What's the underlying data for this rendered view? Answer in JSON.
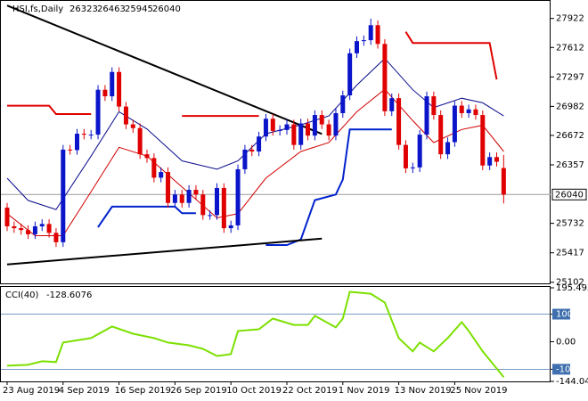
{
  "chart_data": [
    {
      "type": "candlestick",
      "title": "HSI,fs,Daily",
      "categories": [
        "23 Aug 2019",
        null,
        null,
        null,
        null,
        null,
        null,
        null,
        "4 Sep 2019",
        null,
        null,
        null,
        null,
        null,
        null,
        null,
        "16 Sep 2019",
        null,
        null,
        null,
        null,
        null,
        null,
        null,
        "26 Sep 2019",
        null,
        null,
        null,
        null,
        null,
        null,
        null,
        "10 Oct 2019",
        null,
        null,
        null,
        null,
        null,
        null,
        null,
        "22 Oct 2019",
        null,
        null,
        null,
        null,
        null,
        null,
        null,
        "1 Nov 2019",
        null,
        null,
        null,
        null,
        null,
        null,
        null,
        "13 Nov 2019",
        null,
        null,
        null,
        null,
        null,
        null,
        null,
        "25 Nov 2019",
        null,
        null,
        null,
        null,
        null,
        null,
        null
      ],
      "open": [
        25900,
        25700,
        25680,
        25660,
        25615,
        25700,
        25725,
        25630,
        25530,
        26520,
        26515,
        26690,
        26680,
        26680,
        27160,
        27090,
        27350,
        26980,
        26790,
        26750,
        26470,
        26430,
        26220,
        26280,
        25950,
        26040,
        25950,
        26090,
        26040,
        25820,
        25820,
        26110,
        25680,
        25710,
        26310,
        26520,
        26500,
        26660,
        26850,
        26720,
        26730,
        26790,
        26570,
        26800,
        26670,
        26890,
        26790,
        26670,
        26910,
        27100,
        27550,
        27680,
        27690,
        27850,
        27650,
        26930,
        27070,
        26570,
        26320,
        26330,
        26680,
        27090,
        26890,
        26470,
        26600,
        26990,
        26910,
        26950,
        26890,
        26350,
        26440,
        26323
      ],
      "high": [
        25950,
        25750,
        25730,
        25710,
        25750,
        25775,
        25775,
        25680,
        26570,
        26570,
        26740,
        26740,
        26730,
        27210,
        27210,
        27400,
        27400,
        27030,
        26840,
        26800,
        26520,
        26480,
        26330,
        26330,
        26090,
        26090,
        26140,
        26140,
        26090,
        25870,
        26160,
        26160,
        25760,
        26360,
        26570,
        26570,
        26710,
        26900,
        26900,
        26780,
        26840,
        26840,
        26850,
        26850,
        26940,
        26940,
        26840,
        26960,
        27150,
        27600,
        27730,
        27740,
        27920,
        27900,
        27700,
        27120,
        27120,
        26620,
        26380,
        26730,
        27140,
        27140,
        26940,
        26650,
        27040,
        27040,
        27000,
        27000,
        26940,
        26490,
        26490,
        26463
      ],
      "low": [
        25650,
        25630,
        25610,
        25565,
        25565,
        25650,
        25580,
        25480,
        25480,
        26465,
        26465,
        26630,
        26630,
        26630,
        27040,
        27040,
        26930,
        26740,
        26700,
        26420,
        26380,
        26170,
        26170,
        25900,
        25900,
        25900,
        25900,
        25990,
        25770,
        25770,
        25770,
        25630,
        25630,
        25660,
        26260,
        26450,
        26450,
        26610,
        26670,
        26670,
        26680,
        26520,
        26520,
        26620,
        26620,
        26740,
        26620,
        26620,
        26860,
        27050,
        27500,
        27630,
        27640,
        27600,
        26880,
        26880,
        26520,
        26270,
        26270,
        26280,
        26630,
        26840,
        26420,
        26420,
        26550,
        26860,
        26860,
        26840,
        26300,
        26300,
        26340,
        25945
      ],
      "close": [
        25700,
        25680,
        25660,
        25615,
        25700,
        25725,
        25630,
        25530,
        26520,
        26515,
        26690,
        26680,
        26680,
        27160,
        27090,
        27350,
        26980,
        26790,
        26750,
        26470,
        26430,
        26220,
        26280,
        25950,
        26040,
        25950,
        26090,
        26040,
        25820,
        25820,
        26110,
        25680,
        25710,
        26310,
        26520,
        26500,
        26660,
        26850,
        26720,
        26730,
        26790,
        26570,
        26800,
        26670,
        26890,
        26790,
        26670,
        26910,
        27100,
        27550,
        27680,
        27690,
        27850,
        27650,
        26930,
        27070,
        26570,
        26320,
        26330,
        26680,
        27090,
        26890,
        26470,
        26600,
        26990,
        26910,
        26950,
        26890,
        26350,
        26440,
        26390,
        26040
      ],
      "bull_color": "#0a14c8",
      "bear_color": "#e00000",
      "ylim": [
        25090,
        28110
      ],
      "yticks": [
        27922,
        27612,
        27297,
        26982,
        26672,
        26357,
        25732,
        25417,
        25102
      ],
      "overlays": [
        {
          "color": "#0a0a8c",
          "width": 1,
          "x": [
            0,
            3,
            7,
            12,
            16,
            20,
            25,
            30,
            33,
            37,
            42,
            46,
            50,
            54,
            58,
            61,
            65,
            68,
            71
          ],
          "values": [
            26214,
            25977,
            25880,
            26450,
            26925,
            26740,
            26400,
            26310,
            26400,
            26690,
            26785,
            26880,
            27210,
            27495,
            27160,
            26970,
            27070,
            27020,
            26880
          ]
        },
        {
          "color": "#d00000",
          "width": 1,
          "x": [
            0,
            4,
            8,
            12,
            16,
            20,
            25,
            30,
            33,
            37,
            42,
            46,
            50,
            54,
            58,
            61,
            65,
            68,
            71
          ],
          "values": [
            25835,
            25600,
            25600,
            26070,
            26545,
            26450,
            26120,
            25790,
            25835,
            26215,
            26500,
            26595,
            26925,
            27165,
            26830,
            26595,
            26735,
            26780,
            26500
          ]
        },
        {
          "color": "#e00000",
          "width": 2,
          "x": [
            0,
            6,
            7,
            12,
            13,
            25,
            36,
            37,
            57,
            58,
            69,
            70
          ],
          "values": [
            26990,
            26990,
            26900,
            26900,
            null,
            26880,
            26880,
            null,
            27780,
            27660,
            27660,
            27270
          ]
        },
        {
          "color": "#0022cc",
          "width": 2,
          "x": [
            13,
            15,
            24,
            25,
            27,
            28,
            37,
            40,
            42,
            44,
            47,
            48,
            49,
            55
          ],
          "values": [
            25690,
            25910,
            25910,
            25840,
            25840,
            null,
            25500,
            25500,
            25560,
            25980,
            26040,
            26200,
            26735,
            26735
          ]
        },
        {
          "color": "#000000",
          "width": 2,
          "x": [
            0,
            45
          ],
          "values": [
            28060,
            26688
          ]
        },
        {
          "color": "#000000",
          "width": 2,
          "x": [
            0,
            45
          ],
          "values": [
            25293,
            25568
          ]
        }
      ]
    },
    {
      "type": "line",
      "title": "CCI(40)",
      "color": "#7ce000",
      "x": [
        0,
        3,
        5,
        7,
        8,
        12,
        15,
        18,
        21,
        23,
        26,
        28,
        30,
        32,
        33,
        36,
        38,
        41,
        43,
        44,
        47,
        48,
        49,
        52,
        54,
        56,
        58,
        59,
        61,
        63,
        65,
        66,
        68,
        71
      ],
      "values": [
        -87,
        -84,
        -71,
        -74,
        -3,
        13,
        55,
        29,
        13,
        -3,
        -13,
        -26,
        -52,
        -45,
        39,
        45,
        84,
        61,
        61,
        94,
        52,
        84,
        181,
        174,
        142,
        13,
        -35,
        -3,
        -35,
        13,
        71,
        39,
        -35,
        -128.6076
      ],
      "ylim": [
        -144.041,
        195.4934
      ],
      "yticks": [
        195.4934,
        100,
        {
          "value": 0,
          "label": "0.00"
        },
        -100,
        -144.041
      ],
      "levels": [
        100,
        -100
      ]
    }
  ]
}
